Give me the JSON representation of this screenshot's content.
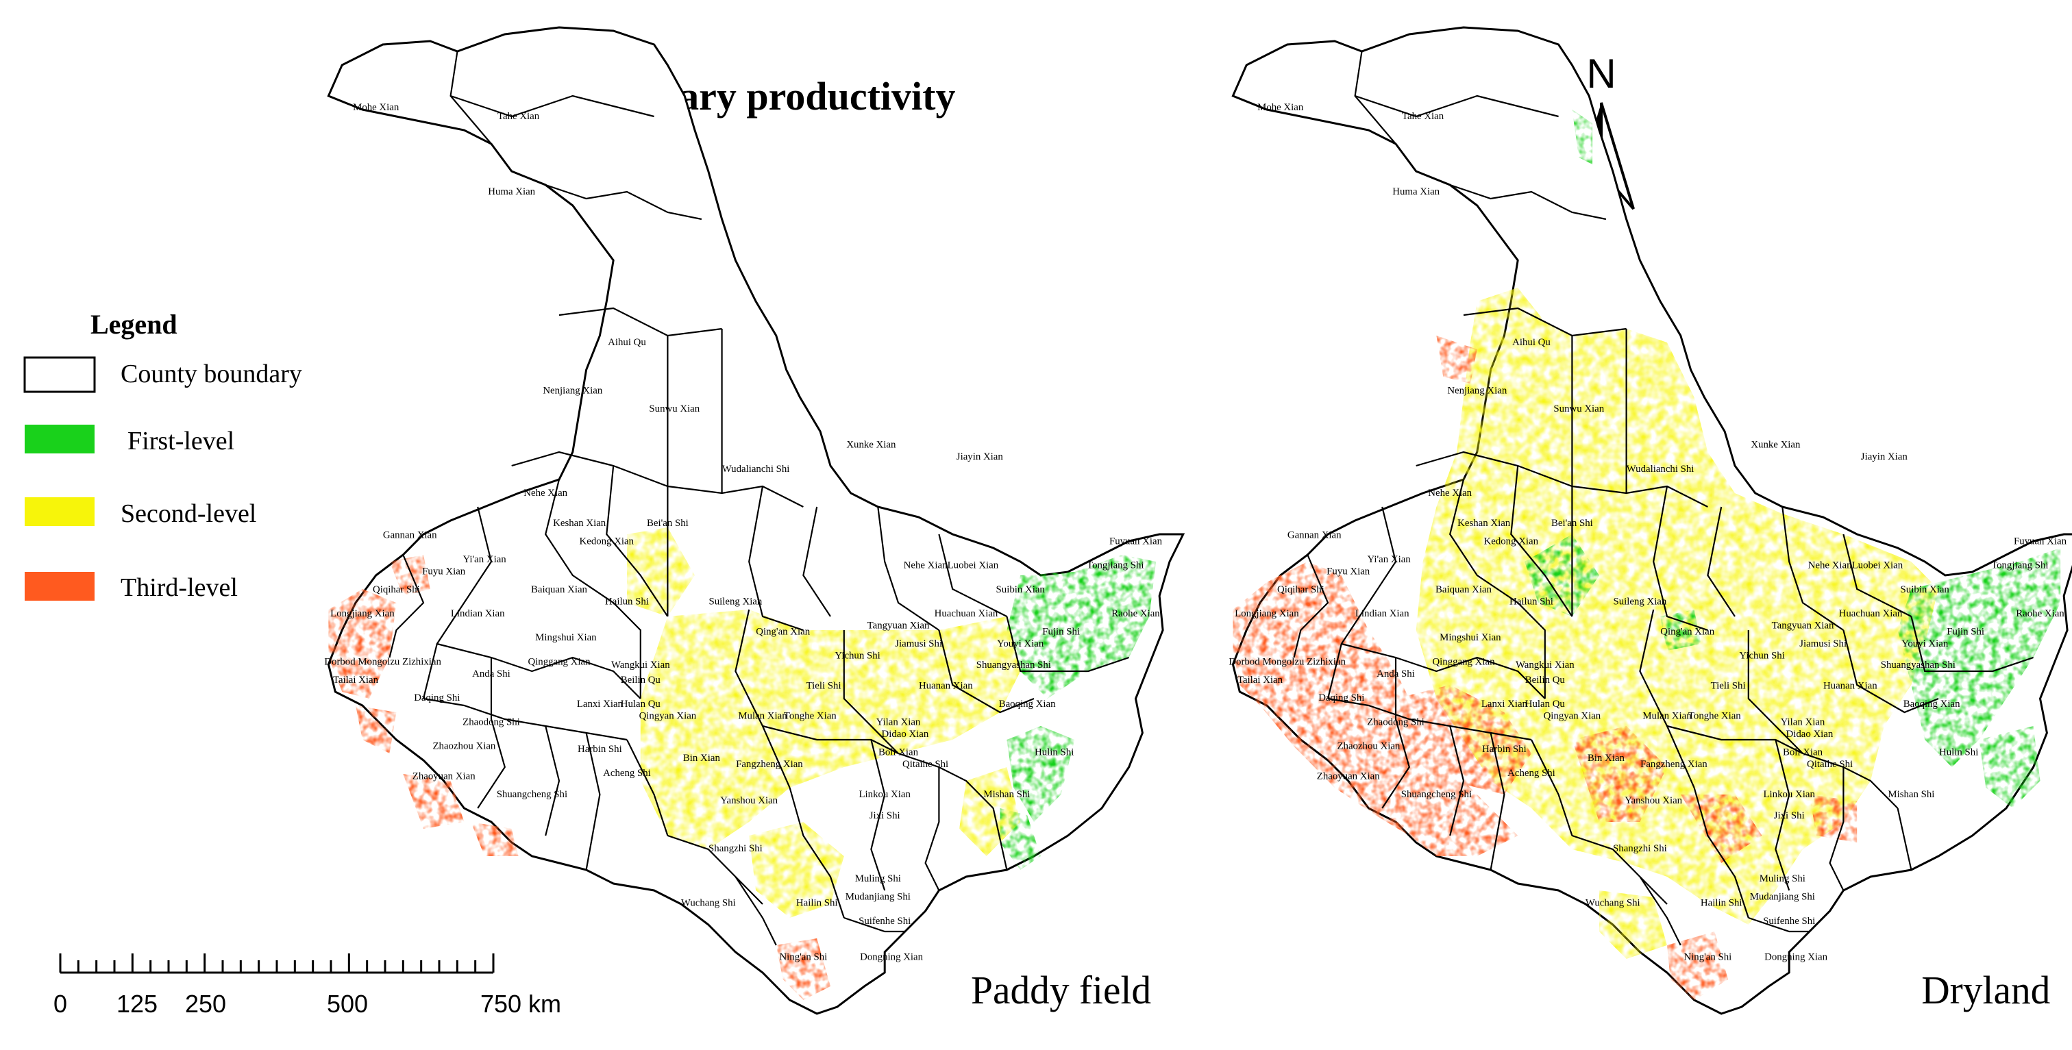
{
  "title": "Primary productivity",
  "legend": {
    "title": "Legend",
    "items": [
      {
        "key": "boundary",
        "label": "County boundary",
        "color": "#ffffff"
      },
      {
        "key": "first",
        "label": "First-level",
        "color": "#19d11b"
      },
      {
        "key": "second",
        "label": "Second-level",
        "color": "#f7f50a"
      },
      {
        "key": "third",
        "label": "Third-level",
        "color": "#ff5a1f"
      }
    ]
  },
  "scale_bar": {
    "ticks": [
      "0",
      "125",
      "250",
      "500",
      "750 km"
    ]
  },
  "north_arrow": {
    "label": "N"
  },
  "maps": [
    {
      "key": "paddy",
      "caption": "Paddy field"
    },
    {
      "key": "dryland",
      "caption": "Dryland"
    }
  ],
  "counties": [
    "Mohe Xian",
    "Tahe Xian",
    "Huma Xian",
    "Aihui Qu",
    "Nenjiang Xian",
    "Sunwu Xian",
    "Xunke Xian",
    "Jiayin Xian",
    "Wudalianchi Shi",
    "Nehe Xian",
    "Keshan Xian",
    "Bei'an Shi",
    "Kedong Xian",
    "Gannan Xian",
    "Yi'an Xian",
    "Fuyu Xian",
    "Qiqihar Shi",
    "Baiquan Xian",
    "Hailun Shi",
    "Suileng Xian",
    "Qing'an Xian",
    "Yichun Shi",
    "Nehe Xian",
    "Luobei Xian",
    "Suibin Xian",
    "Fujin Shi",
    "Fuyuan Xian",
    "Tongjiang Shi",
    "Raohe Xian",
    "Lindian Xian",
    "Mingshui Xian",
    "Longjiang Xian",
    "Qinggang Xian",
    "Wangkui Xian",
    "Beilin Qu",
    "Tieli Shi",
    "Tangyuan Xian",
    "Huachuan Xian",
    "Jiamusi Shi",
    "Huanan Xian",
    "Youyi Xian",
    "Shuangyashan Shi",
    "Baoqing Xian",
    "Dorbod Mongolzu Zizhixian",
    "Anda Shi",
    "Tailai Xian",
    "Daqing Shi",
    "Lanxi Xian",
    "Zhaodong Shi",
    "Hulan Qu",
    "Qingyan Xian",
    "Mulan Xian",
    "Tonghe Xian",
    "Yilan Xian",
    "Zhaozhou Xian",
    "Harbin Shi",
    "Bin Xian",
    "Fangzheng Xian",
    "Boli Xian",
    "Qitaihe Shi",
    "Hulin Shi",
    "Zhaoyuan Xian",
    "Acheng Shi",
    "Yanshou Xian",
    "Shuangcheng Shi",
    "Linkou Xian",
    "Jixi Shi",
    "Mishan Shi",
    "Didao Xian",
    "Shangzhi Shi",
    "Wuchang Shi",
    "Hailin Shi",
    "Mudanjiang Shi",
    "Muling Shi",
    "Suifenhe Shi",
    "Ning'an Shi",
    "Dongning Xian"
  ]
}
